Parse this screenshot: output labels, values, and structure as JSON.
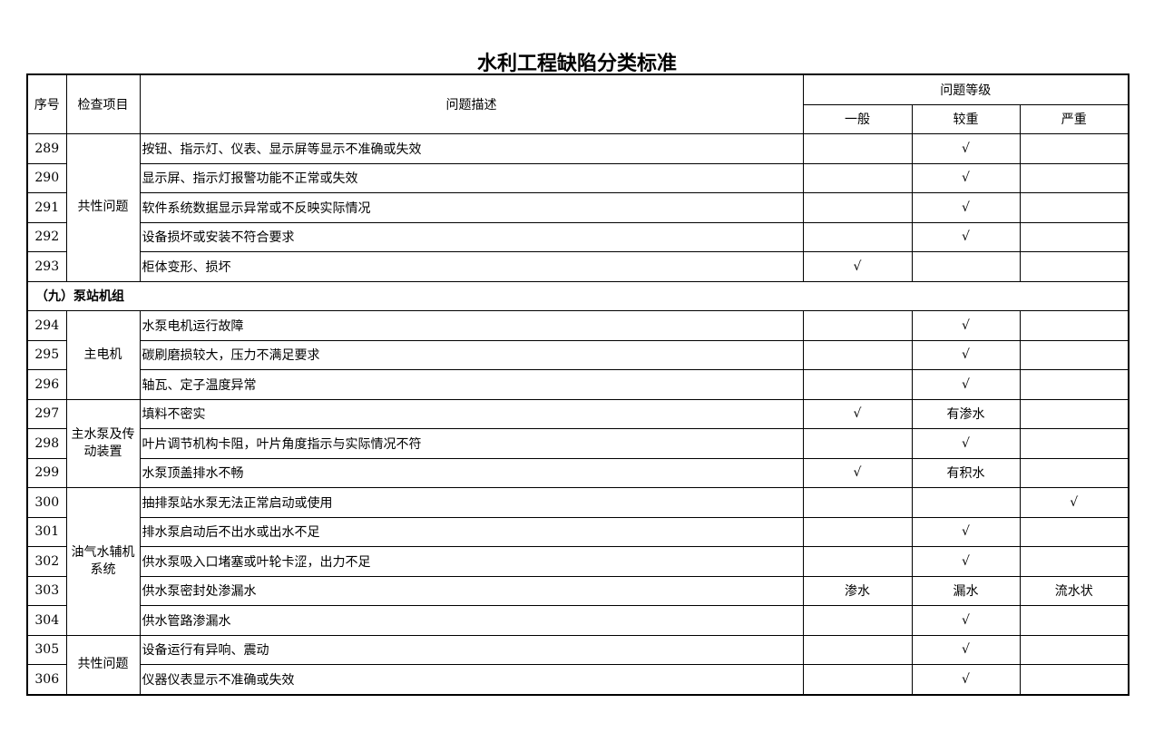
{
  "title": "水利工程缺陷分类标准",
  "headers": {
    "no": "序号",
    "item": "检查项目",
    "desc": "问题描述",
    "level": "问题等级",
    "general": "一般",
    "major": "较重",
    "severe": "严重"
  },
  "section": "（九）泵站机组",
  "groups": {
    "g1": "共性问题",
    "g2": "主电机",
    "g3": "主水泵及传动装置",
    "g4": "油气水辅机系统",
    "g5": "共性问题"
  },
  "rows": [
    {
      "no": "289",
      "desc": "按钮、指示灯、仪表、显示屏等显示不准确或失效",
      "general": "",
      "major": "√",
      "severe": ""
    },
    {
      "no": "290",
      "desc": "显示屏、指示灯报警功能不正常或失效",
      "general": "",
      "major": "√",
      "severe": ""
    },
    {
      "no": "291",
      "desc": "软件系统数据显示异常或不反映实际情况",
      "general": "",
      "major": "√",
      "severe": ""
    },
    {
      "no": "292",
      "desc": "设备损坏或安装不符合要求",
      "general": "",
      "major": "√",
      "severe": ""
    },
    {
      "no": "293",
      "desc": "柜体变形、损坏",
      "general": "√",
      "major": "",
      "severe": ""
    },
    {
      "no": "294",
      "desc": "水泵电机运行故障",
      "general": "",
      "major": "√",
      "severe": ""
    },
    {
      "no": "295",
      "desc": "碳刷磨损较大，压力不满足要求",
      "general": "",
      "major": "√",
      "severe": ""
    },
    {
      "no": "296",
      "desc": "轴瓦、定子温度异常",
      "general": "",
      "major": "√",
      "severe": ""
    },
    {
      "no": "297",
      "desc": "填料不密实",
      "general": "√",
      "major": "有渗水",
      "severe": ""
    },
    {
      "no": "298",
      "desc": "叶片调节机构卡阻，叶片角度指示与实际情况不符",
      "general": "",
      "major": "√",
      "severe": ""
    },
    {
      "no": "299",
      "desc": "水泵顶盖排水不畅",
      "general": "√",
      "major": "有积水",
      "severe": ""
    },
    {
      "no": "300",
      "desc": "抽排泵站水泵无法正常启动或使用",
      "general": "",
      "major": "",
      "severe": "√"
    },
    {
      "no": "301",
      "desc": "排水泵启动后不出水或出水不足",
      "general": "",
      "major": "√",
      "severe": ""
    },
    {
      "no": "302",
      "desc": "供水泵吸入口堵塞或叶轮卡涩，出力不足",
      "general": "",
      "major": "√",
      "severe": ""
    },
    {
      "no": "303",
      "desc": "供水泵密封处渗漏水",
      "general": "渗水",
      "major": "漏水",
      "severe": "流水状"
    },
    {
      "no": "304",
      "desc": "供水管路渗漏水",
      "general": "",
      "major": "√",
      "severe": ""
    },
    {
      "no": "305",
      "desc": "设备运行有异响、震动",
      "general": "",
      "major": "√",
      "severe": ""
    },
    {
      "no": "306",
      "desc": "仪器仪表显示不准确或失效",
      "general": "",
      "major": "√",
      "severe": ""
    }
  ]
}
